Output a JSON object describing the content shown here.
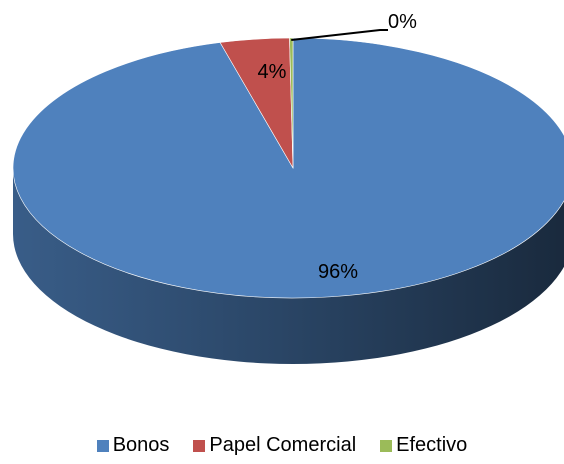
{
  "chart_data": {
    "type": "pie",
    "categories": [
      "Bonos",
      "Papel Comercial",
      "Efectivo"
    ],
    "values": [
      96,
      4,
      0.2
    ],
    "labels": [
      "96%",
      "4%",
      "0%"
    ],
    "colors": [
      "#4F81BD",
      "#C0504D",
      "#9BBB59"
    ],
    "legend_position": "bottom",
    "three_d": true
  }
}
